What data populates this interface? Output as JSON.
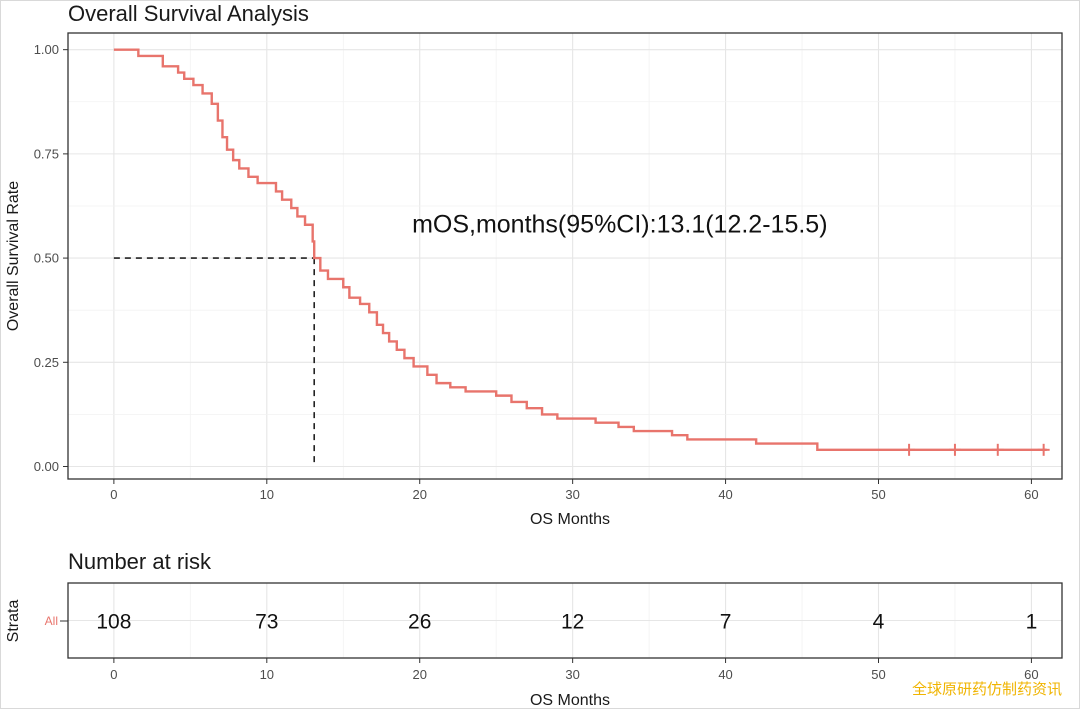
{
  "chart_data": [
    {
      "type": "line",
      "subtype": "kaplan-meier",
      "title": "Overall Survival Analysis",
      "xlabel": "OS Months",
      "ylabel": "Overall Survival Rate",
      "xlim": [
        -3,
        62
      ],
      "ylim": [
        -0.03,
        1.04
      ],
      "x_ticks": [
        0,
        10,
        20,
        30,
        40,
        50,
        60
      ],
      "x_tick_labels": [
        "0",
        "10",
        "20",
        "30",
        "40",
        "50",
        "60"
      ],
      "y_ticks": [
        0,
        0.25,
        0.5,
        0.75,
        1
      ],
      "y_tick_labels": [
        "0.00",
        "0.25",
        "0.50",
        "0.75",
        "1.00"
      ],
      "grid": true,
      "series": [
        {
          "color": "#e8746c",
          "steps": [
            [
              0,
              1.0
            ],
            [
              1.5,
              1.0
            ],
            [
              1.6,
              0.985
            ],
            [
              3.0,
              0.985
            ],
            [
              3.2,
              0.96
            ],
            [
              4.2,
              0.945
            ],
            [
              4.6,
              0.93
            ],
            [
              5.2,
              0.915
            ],
            [
              5.8,
              0.895
            ],
            [
              6.4,
              0.87
            ],
            [
              6.8,
              0.83
            ],
            [
              7.1,
              0.79
            ],
            [
              7.4,
              0.76
            ],
            [
              7.8,
              0.735
            ],
            [
              8.2,
              0.715
            ],
            [
              8.8,
              0.695
            ],
            [
              9.4,
              0.68
            ],
            [
              10.6,
              0.66
            ],
            [
              11.0,
              0.64
            ],
            [
              11.6,
              0.62
            ],
            [
              12.0,
              0.6
            ],
            [
              12.5,
              0.58
            ],
            [
              13.0,
              0.54
            ],
            [
              13.1,
              0.5
            ],
            [
              13.5,
              0.47
            ],
            [
              14.0,
              0.45
            ],
            [
              15.0,
              0.43
            ],
            [
              15.4,
              0.405
            ],
            [
              16.1,
              0.39
            ],
            [
              16.7,
              0.37
            ],
            [
              17.2,
              0.34
            ],
            [
              17.6,
              0.32
            ],
            [
              18.0,
              0.3
            ],
            [
              18.5,
              0.28
            ],
            [
              19.0,
              0.26
            ],
            [
              19.6,
              0.24
            ],
            [
              20.5,
              0.22
            ],
            [
              21.1,
              0.2
            ],
            [
              22.0,
              0.19
            ],
            [
              23.0,
              0.18
            ],
            [
              25.0,
              0.17
            ],
            [
              26.0,
              0.155
            ],
            [
              27.0,
              0.14
            ],
            [
              28.0,
              0.125
            ],
            [
              29.0,
              0.115
            ],
            [
              31.5,
              0.105
            ],
            [
              33.0,
              0.095
            ],
            [
              34.0,
              0.085
            ],
            [
              36.5,
              0.075
            ],
            [
              37.5,
              0.065
            ],
            [
              42.0,
              0.055
            ],
            [
              46.0,
              0.04
            ],
            [
              61.0,
              0.04
            ]
          ],
          "censor_marks": [
            [
              52,
              0.04
            ],
            [
              55,
              0.04
            ],
            [
              57.8,
              0.04
            ],
            [
              60.8,
              0.04
            ]
          ]
        }
      ],
      "median_line": {
        "x": 13.1,
        "y": 0.5
      },
      "annotations": [
        {
          "text": "mOS,months(95%CI):13.1(12.2-15.5)",
          "x": 19.5,
          "y": 0.58
        }
      ]
    },
    {
      "type": "table",
      "title": "Number at risk",
      "xlabel": "OS Months",
      "ylabel": "Strata",
      "xlim": [
        -3,
        62
      ],
      "x_ticks": [
        0,
        10,
        20,
        30,
        40,
        50,
        60
      ],
      "x_tick_labels": [
        "0",
        "10",
        "20",
        "30",
        "40",
        "50",
        "60"
      ],
      "strata": [
        {
          "name": "All",
          "color": "#e8746c",
          "times": [
            0,
            10,
            20,
            30,
            40,
            50,
            60
          ],
          "values": [
            "108",
            "73",
            "26",
            "12",
            "7",
            "4",
            "1"
          ]
        }
      ]
    }
  ],
  "watermark": {
    "text": "全球原研药仿制药资讯",
    "color": "#f0b400"
  }
}
